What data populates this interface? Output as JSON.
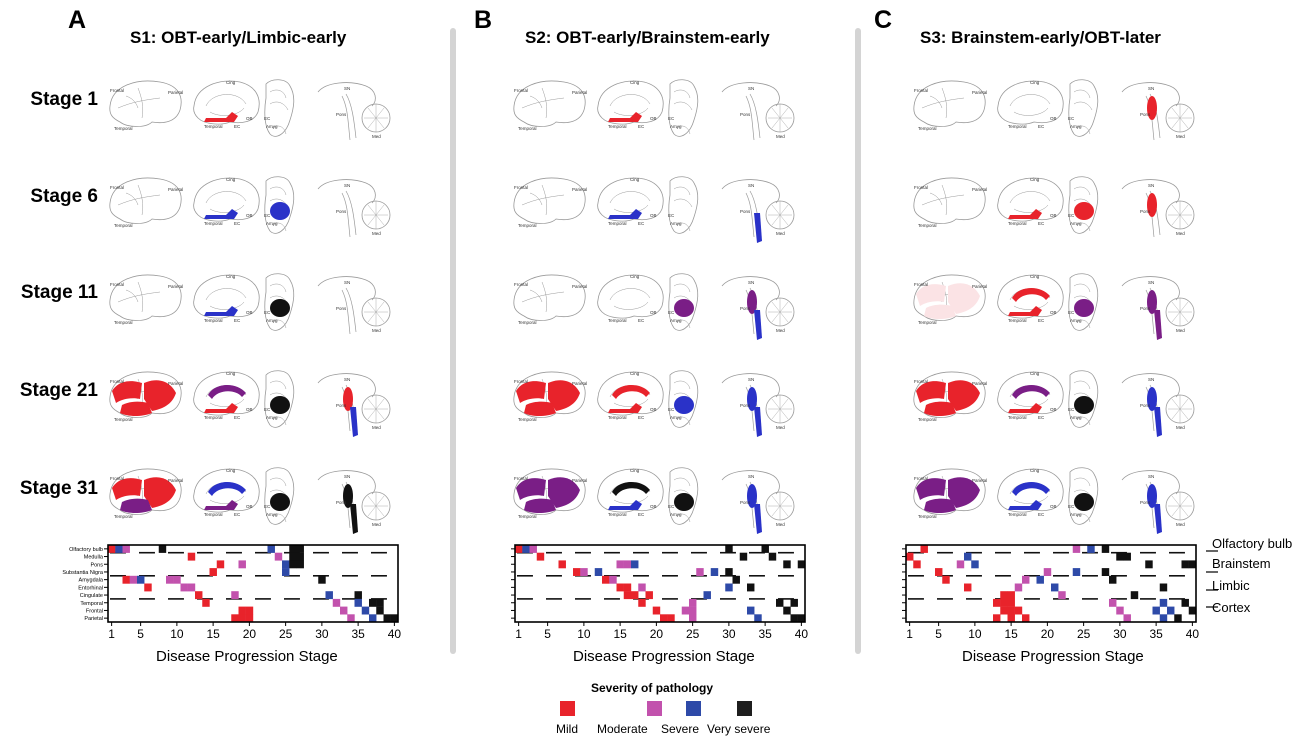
{
  "panels": [
    {
      "letter": "A",
      "title": "S1: OBT-early/Limbic-early",
      "xlabel": "Disease Progression Stage"
    },
    {
      "letter": "B",
      "title": "S2: OBT-early/Brainstem-early",
      "xlabel": "Disease Progression Stage"
    },
    {
      "letter": "C",
      "title": "S3: Brainstem-early/OBT-later",
      "xlabel": "Disease Progression Stage"
    }
  ],
  "stages": [
    "Stage 1",
    "Stage 6",
    "Stage 11",
    "Stage 21",
    "Stage 31"
  ],
  "brain_labels": {
    "frontal": "Frontal",
    "parietal": "Parietal",
    "temporal": "Temporal",
    "cing": "Cing",
    "ob": "OB",
    "ec": "EC",
    "amyg": "Amyg",
    "sn": "SN",
    "pons": "Pons",
    "med": "Med"
  },
  "region_rows_s1": [
    "Olfactory bulb",
    "Medulla",
    "Pons",
    "Substantia Nigra",
    "Amygdala",
    "Entorhinal",
    "Cingulate",
    "Temporal",
    "Frontal",
    "Parietal"
  ],
  "right_labels": [
    "Olfactory bulb",
    "Brainstem",
    "Limbic",
    "Cortex"
  ],
  "legend": {
    "title": "Severity of pathology",
    "items": [
      {
        "label": "Mild",
        "color": "#e8232b"
      },
      {
        "label": "Moderate",
        "color": "#c252ad"
      },
      {
        "label": "Severe",
        "color": "#2e4aa8"
      },
      {
        "label": "Very severe",
        "color": "#1e1e1e"
      }
    ]
  },
  "colors": {
    "mild": "#e8232b",
    "moderate": "#c252ad",
    "moderate_dark": "#7a1e86",
    "severe": "#2a32c8",
    "very_severe": "#111111",
    "divider": "#d4d4d4"
  },
  "chart_data": [
    {
      "type": "heatmap",
      "panel": "A",
      "xlabel": "Disease Progression Stage",
      "x_ticks": [
        1,
        5,
        10,
        15,
        20,
        25,
        30,
        35,
        40
      ],
      "rows": [
        "Olfactory bulb",
        "Medulla",
        "Pons",
        "Substantia Nigra",
        "Amygdala",
        "Entorhinal",
        "Cingulate",
        "Temporal",
        "Frontal",
        "Parietal"
      ],
      "cells": [
        {
          "row": 0,
          "stage": 1,
          "level": "mild"
        },
        {
          "row": 0,
          "stage": 2,
          "level": "severe"
        },
        {
          "row": 0,
          "stage": 3,
          "level": "moderate"
        },
        {
          "row": 0,
          "stage": 8,
          "level": "very_severe"
        },
        {
          "row": 0,
          "stage": 23,
          "level": "severe"
        },
        {
          "row": 0,
          "stage": 26,
          "level": "very_severe"
        },
        {
          "row": 0,
          "stage": 27,
          "level": "very_severe"
        },
        {
          "row": 1,
          "stage": 12,
          "level": "mild"
        },
        {
          "row": 1,
          "stage": 24,
          "level": "moderate"
        },
        {
          "row": 1,
          "stage": 26,
          "level": "very_severe"
        },
        {
          "row": 1,
          "stage": 27,
          "level": "very_severe"
        },
        {
          "row": 2,
          "stage": 16,
          "level": "mild"
        },
        {
          "row": 2,
          "stage": 19,
          "level": "moderate"
        },
        {
          "row": 2,
          "stage": 25,
          "level": "severe"
        },
        {
          "row": 2,
          "stage": 26,
          "level": "very_severe"
        },
        {
          "row": 2,
          "stage": 27,
          "level": "very_severe"
        },
        {
          "row": 3,
          "stage": 15,
          "level": "mild"
        },
        {
          "row": 3,
          "stage": 25,
          "level": "severe"
        },
        {
          "row": 4,
          "stage": 3,
          "level": "mild"
        },
        {
          "row": 4,
          "stage": 4,
          "level": "moderate"
        },
        {
          "row": 4,
          "stage": 5,
          "level": "severe"
        },
        {
          "row": 4,
          "stage": 9,
          "level": "moderate"
        },
        {
          "row": 4,
          "stage": 10,
          "level": "moderate"
        },
        {
          "row": 4,
          "stage": 30,
          "level": "very_severe"
        },
        {
          "row": 5,
          "stage": 6,
          "level": "mild"
        },
        {
          "row": 5,
          "stage": 11,
          "level": "moderate"
        },
        {
          "row": 5,
          "stage": 12,
          "level": "moderate"
        },
        {
          "row": 6,
          "stage": 13,
          "level": "mild"
        },
        {
          "row": 6,
          "stage": 18,
          "level": "moderate"
        },
        {
          "row": 6,
          "stage": 31,
          "level": "severe"
        },
        {
          "row": 6,
          "stage": 35,
          "level": "very_severe"
        },
        {
          "row": 7,
          "stage": 14,
          "level": "mild"
        },
        {
          "row": 7,
          "stage": 32,
          "level": "moderate"
        },
        {
          "row": 7,
          "stage": 35,
          "level": "severe"
        },
        {
          "row": 7,
          "stage": 37,
          "level": "very_severe"
        },
        {
          "row": 7,
          "stage": 38,
          "level": "very_severe"
        },
        {
          "row": 8,
          "stage": 19,
          "level": "mild"
        },
        {
          "row": 8,
          "stage": 20,
          "level": "mild"
        },
        {
          "row": 8,
          "stage": 33,
          "level": "moderate"
        },
        {
          "row": 8,
          "stage": 36,
          "level": "severe"
        },
        {
          "row": 8,
          "stage": 38,
          "level": "very_severe"
        },
        {
          "row": 9,
          "stage": 18,
          "level": "mild"
        },
        {
          "row": 9,
          "stage": 19,
          "level": "mild"
        },
        {
          "row": 9,
          "stage": 20,
          "level": "mild"
        },
        {
          "row": 9,
          "stage": 34,
          "level": "moderate"
        },
        {
          "row": 9,
          "stage": 37,
          "level": "severe"
        },
        {
          "row": 9,
          "stage": 39,
          "level": "very_severe"
        },
        {
          "row": 9,
          "stage": 40,
          "level": "very_severe"
        }
      ]
    },
    {
      "type": "heatmap",
      "panel": "B",
      "xlabel": "Disease Progression Stage",
      "x_ticks": [
        1,
        5,
        10,
        15,
        20,
        25,
        30,
        35,
        40
      ],
      "rows": 10,
      "cells": [
        {
          "row": 0,
          "stage": 1,
          "level": "mild"
        },
        {
          "row": 0,
          "stage": 2,
          "level": "severe"
        },
        {
          "row": 0,
          "stage": 3,
          "level": "moderate"
        },
        {
          "row": 0,
          "stage": 30,
          "level": "very_severe"
        },
        {
          "row": 0,
          "stage": 35,
          "level": "very_severe"
        },
        {
          "row": 1,
          "stage": 4,
          "level": "mild"
        },
        {
          "row": 1,
          "stage": 32,
          "level": "very_severe"
        },
        {
          "row": 1,
          "stage": 36,
          "level": "very_severe"
        },
        {
          "row": 2,
          "stage": 7,
          "level": "mild"
        },
        {
          "row": 2,
          "stage": 15,
          "level": "moderate"
        },
        {
          "row": 2,
          "stage": 16,
          "level": "moderate"
        },
        {
          "row": 2,
          "stage": 17,
          "level": "severe"
        },
        {
          "row": 2,
          "stage": 38,
          "level": "very_severe"
        },
        {
          "row": 2,
          "stage": 40,
          "level": "very_severe"
        },
        {
          "row": 3,
          "stage": 9,
          "level": "mild"
        },
        {
          "row": 3,
          "stage": 10,
          "level": "moderate"
        },
        {
          "row": 3,
          "stage": 12,
          "level": "severe"
        },
        {
          "row": 3,
          "stage": 26,
          "level": "moderate"
        },
        {
          "row": 3,
          "stage": 28,
          "level": "severe"
        },
        {
          "row": 3,
          "stage": 30,
          "level": "very_severe"
        },
        {
          "row": 4,
          "stage": 13,
          "level": "mild"
        },
        {
          "row": 4,
          "stage": 14,
          "level": "moderate"
        },
        {
          "row": 4,
          "stage": 31,
          "level": "very_severe"
        },
        {
          "row": 5,
          "stage": 15,
          "level": "mild"
        },
        {
          "row": 5,
          "stage": 16,
          "level": "mild"
        },
        {
          "row": 5,
          "stage": 18,
          "level": "moderate"
        },
        {
          "row": 5,
          "stage": 30,
          "level": "severe"
        },
        {
          "row": 5,
          "stage": 33,
          "level": "very_severe"
        },
        {
          "row": 6,
          "stage": 16,
          "level": "mild"
        },
        {
          "row": 6,
          "stage": 17,
          "level": "mild"
        },
        {
          "row": 6,
          "stage": 19,
          "level": "mild"
        },
        {
          "row": 6,
          "stage": 27,
          "level": "severe"
        },
        {
          "row": 7,
          "stage": 18,
          "level": "mild"
        },
        {
          "row": 7,
          "stage": 25,
          "level": "moderate"
        },
        {
          "row": 7,
          "stage": 37,
          "level": "very_severe"
        },
        {
          "row": 7,
          "stage": 39,
          "level": "very_severe"
        },
        {
          "row": 8,
          "stage": 20,
          "level": "mild"
        },
        {
          "row": 8,
          "stage": 24,
          "level": "moderate"
        },
        {
          "row": 8,
          "stage": 25,
          "level": "moderate"
        },
        {
          "row": 8,
          "stage": 33,
          "level": "severe"
        },
        {
          "row": 8,
          "stage": 38,
          "level": "very_severe"
        },
        {
          "row": 9,
          "stage": 21,
          "level": "mild"
        },
        {
          "row": 9,
          "stage": 22,
          "level": "mild"
        },
        {
          "row": 9,
          "stage": 25,
          "level": "moderate"
        },
        {
          "row": 9,
          "stage": 34,
          "level": "severe"
        },
        {
          "row": 9,
          "stage": 39,
          "level": "very_severe"
        },
        {
          "row": 9,
          "stage": 40,
          "level": "very_severe"
        }
      ]
    },
    {
      "type": "heatmap",
      "panel": "C",
      "xlabel": "Disease Progression Stage",
      "x_ticks": [
        1,
        5,
        10,
        15,
        20,
        25,
        30,
        35,
        40
      ],
      "rows": 10,
      "cells": [
        {
          "row": 0,
          "stage": 3,
          "level": "mild"
        },
        {
          "row": 0,
          "stage": 24,
          "level": "moderate"
        },
        {
          "row": 0,
          "stage": 26,
          "level": "severe"
        },
        {
          "row": 0,
          "stage": 28,
          "level": "very_severe"
        },
        {
          "row": 1,
          "stage": 1,
          "level": "mild"
        },
        {
          "row": 1,
          "stage": 9,
          "level": "severe"
        },
        {
          "row": 1,
          "stage": 30,
          "level": "very_severe"
        },
        {
          "row": 1,
          "stage": 31,
          "level": "very_severe"
        },
        {
          "row": 2,
          "stage": 2,
          "level": "mild"
        },
        {
          "row": 2,
          "stage": 8,
          "level": "moderate"
        },
        {
          "row": 2,
          "stage": 10,
          "level": "severe"
        },
        {
          "row": 2,
          "stage": 34,
          "level": "very_severe"
        },
        {
          "row": 2,
          "stage": 39,
          "level": "very_severe"
        },
        {
          "row": 2,
          "stage": 40,
          "level": "very_severe"
        },
        {
          "row": 3,
          "stage": 5,
          "level": "mild"
        },
        {
          "row": 3,
          "stage": 20,
          "level": "moderate"
        },
        {
          "row": 3,
          "stage": 24,
          "level": "severe"
        },
        {
          "row": 3,
          "stage": 28,
          "level": "very_severe"
        },
        {
          "row": 4,
          "stage": 6,
          "level": "mild"
        },
        {
          "row": 4,
          "stage": 17,
          "level": "moderate"
        },
        {
          "row": 4,
          "stage": 19,
          "level": "severe"
        },
        {
          "row": 4,
          "stage": 29,
          "level": "very_severe"
        },
        {
          "row": 5,
          "stage": 9,
          "level": "mild"
        },
        {
          "row": 5,
          "stage": 16,
          "level": "moderate"
        },
        {
          "row": 5,
          "stage": 21,
          "level": "severe"
        },
        {
          "row": 5,
          "stage": 36,
          "level": "very_severe"
        },
        {
          "row": 6,
          "stage": 14,
          "level": "mild"
        },
        {
          "row": 6,
          "stage": 15,
          "level": "mild"
        },
        {
          "row": 6,
          "stage": 22,
          "level": "moderate"
        },
        {
          "row": 6,
          "stage": 32,
          "level": "very_severe"
        },
        {
          "row": 7,
          "stage": 13,
          "level": "mild"
        },
        {
          "row": 7,
          "stage": 14,
          "level": "mild"
        },
        {
          "row": 7,
          "stage": 15,
          "level": "mild"
        },
        {
          "row": 7,
          "stage": 29,
          "level": "moderate"
        },
        {
          "row": 7,
          "stage": 36,
          "level": "severe"
        },
        {
          "row": 7,
          "stage": 39,
          "level": "very_severe"
        },
        {
          "row": 8,
          "stage": 14,
          "level": "mild"
        },
        {
          "row": 8,
          "stage": 15,
          "level": "mild"
        },
        {
          "row": 8,
          "stage": 16,
          "level": "mild"
        },
        {
          "row": 8,
          "stage": 30,
          "level": "moderate"
        },
        {
          "row": 8,
          "stage": 35,
          "level": "severe"
        },
        {
          "row": 8,
          "stage": 37,
          "level": "severe"
        },
        {
          "row": 8,
          "stage": 40,
          "level": "very_severe"
        },
        {
          "row": 9,
          "stage": 13,
          "level": "mild"
        },
        {
          "row": 9,
          "stage": 15,
          "level": "mild"
        },
        {
          "row": 9,
          "stage": 17,
          "level": "mild"
        },
        {
          "row": 9,
          "stage": 31,
          "level": "moderate"
        },
        {
          "row": 9,
          "stage": 36,
          "level": "severe"
        },
        {
          "row": 9,
          "stage": 38,
          "level": "very_severe"
        }
      ]
    }
  ]
}
